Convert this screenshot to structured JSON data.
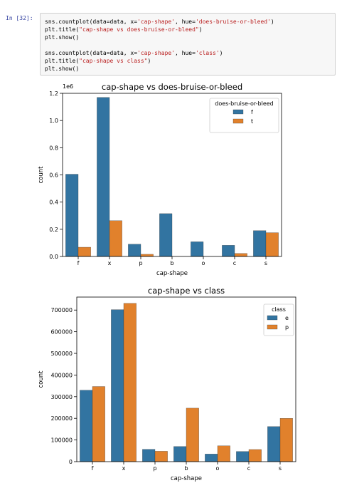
{
  "cell": {
    "prompt": "In [32]:",
    "code_lines": [
      [
        {
          "t": "sns.countplot(data=data, x="
        },
        {
          "t": "'cap-shape'",
          "s": 1
        },
        {
          "t": ", hue="
        },
        {
          "t": "'does-bruise-or-bleed'",
          "s": 1
        },
        {
          "t": ")"
        }
      ],
      [
        {
          "t": "plt.title("
        },
        {
          "t": "\"cap-shape vs does-bruise-or-bleed\"",
          "s": 1
        },
        {
          "t": ")"
        }
      ],
      [
        {
          "t": "plt.show()"
        }
      ],
      [
        {
          "t": ""
        }
      ],
      [
        {
          "t": "sns.countplot(data=data, x="
        },
        {
          "t": "'cap-shape'",
          "s": 1
        },
        {
          "t": ", hue="
        },
        {
          "t": "'class'",
          "s": 1
        },
        {
          "t": ")"
        }
      ],
      [
        {
          "t": "plt.title("
        },
        {
          "t": "\"cap-shape vs class\"",
          "s": 1
        },
        {
          "t": ")"
        }
      ],
      [
        {
          "t": "plt.show()"
        }
      ]
    ]
  },
  "colors": {
    "blue": "#3274a1",
    "orange": "#e1812c"
  },
  "chart_data": [
    {
      "type": "bar",
      "title": "cap-shape vs does-bruise-or-bleed",
      "xlabel": "cap-shape",
      "ylabel": "count",
      "offset_label": "1e6",
      "categories": [
        "f",
        "x",
        "p",
        "b",
        "o",
        "c",
        "s"
      ],
      "ylim": [
        0,
        1.2
      ],
      "yticks": [
        "0.0",
        "0.2",
        "0.4",
        "0.6",
        "0.8",
        "1.0",
        "1.2"
      ],
      "legend": {
        "title": "does-bruise-or-bleed",
        "position": "top-right"
      },
      "series": [
        {
          "name": "f",
          "values": [
            0.605,
            1.17,
            0.09,
            0.315,
            0.108,
            0.082,
            0.19
          ]
        },
        {
          "name": "t",
          "values": [
            0.068,
            0.263,
            0.016,
            0,
            0,
            0.022,
            0.175
          ]
        }
      ]
    },
    {
      "type": "bar",
      "title": "cap-shape vs class",
      "xlabel": "cap-shape",
      "ylabel": "count",
      "categories": [
        "f",
        "x",
        "p",
        "b",
        "o",
        "c",
        "s"
      ],
      "ylim": [
        0,
        760000
      ],
      "yticks": [
        "0",
        "100000",
        "200000",
        "300000",
        "400000",
        "500000",
        "600000",
        "700000"
      ],
      "legend": {
        "title": "class",
        "position": "top-right"
      },
      "series": [
        {
          "name": "e",
          "values": [
            330000,
            702000,
            57000,
            70000,
            35000,
            47000,
            162000
          ]
        },
        {
          "name": "p",
          "values": [
            347000,
            731000,
            48000,
            247000,
            73000,
            56000,
            200000
          ]
        }
      ]
    }
  ]
}
